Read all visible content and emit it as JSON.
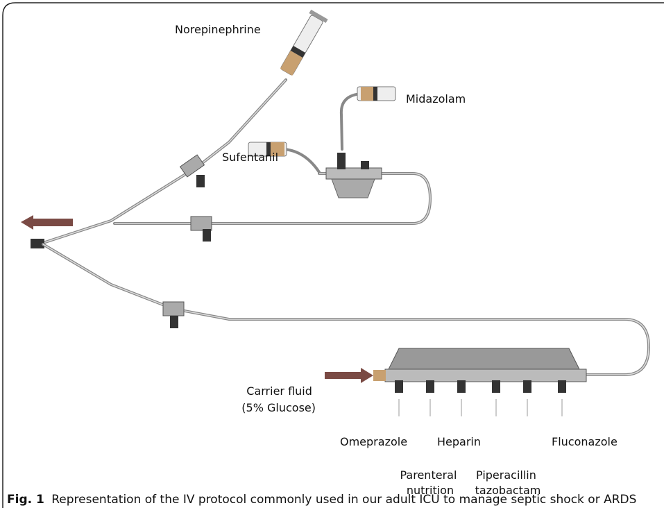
{
  "figure": {
    "labels": {
      "norepinephrine": "Norepinephrine",
      "midazolam": "Midazolam",
      "sufentanil": "Sufentanil",
      "carrier_fluid": [
        "Carrier fluid",
        "(5% Glucose)"
      ],
      "omeprazole": "Omeprazole",
      "parenteral_nutrition": [
        "Parenteral",
        "nutrition"
      ],
      "heparin": "Heparin",
      "piperacillin_tazobactam": [
        "Piperacillin",
        "tazobactam"
      ],
      "fluconazole": "Fluconazole"
    }
  },
  "caption": {
    "label": "Fig. 1",
    "text": "Representation of the IV protocol commonly used in our adult ICU to manage septic shock or ARDS"
  }
}
